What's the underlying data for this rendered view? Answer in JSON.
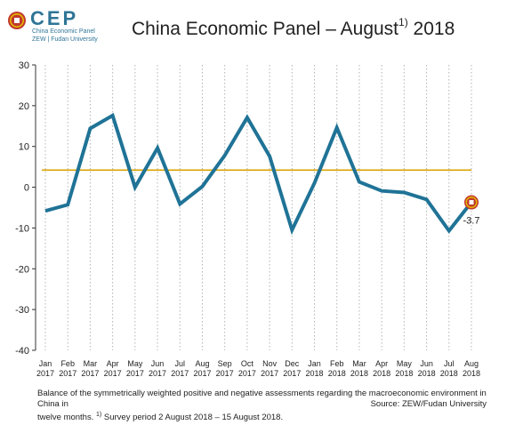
{
  "logo": {
    "text": "CEP",
    "line1": "China Economic Panel",
    "line2": "ZEW | Fudan University"
  },
  "title": {
    "main": "China Economic Panel – August",
    "superscript": "1)",
    "year": "2018"
  },
  "footer": {
    "line1": "Balance of the symmetrically weighted positive and negative assessments regarding the macroeconomic environment in China in",
    "line2_prefix": "twelve months. ",
    "footnote_mark": "1)",
    "line2_rest": " Survey period 2 August 2018 – 15 August 2018.",
    "source": "Source: ZEW/Fudan University"
  },
  "chart_data": {
    "type": "line",
    "categories": [
      [
        "Jan",
        "2017"
      ],
      [
        "Feb",
        "2017"
      ],
      [
        "Mar",
        "2017"
      ],
      [
        "Apr",
        "2017"
      ],
      [
        "May",
        "2017"
      ],
      [
        "Jun",
        "2017"
      ],
      [
        "Jul",
        "2017"
      ],
      [
        "Aug",
        "2017"
      ],
      [
        "Sep",
        "2017"
      ],
      [
        "Oct",
        "2017"
      ],
      [
        "Nov",
        "2017"
      ],
      [
        "Dec",
        "2017"
      ],
      [
        "Jan",
        "2018"
      ],
      [
        "Feb",
        "2018"
      ],
      [
        "Mar",
        "2018"
      ],
      [
        "Apr",
        "2018"
      ],
      [
        "May",
        "2018"
      ],
      [
        "Jun",
        "2018"
      ],
      [
        "Jul",
        "2018"
      ],
      [
        "Aug",
        "2018"
      ]
    ],
    "series": [
      {
        "values": [
          -5.8,
          -4.3,
          14.4,
          17.6,
          0.0,
          9.6,
          -4.1,
          0.2,
          7.8,
          17.1,
          7.6,
          -10.5,
          1.0,
          14.6,
          1.3,
          -0.9,
          -1.3,
          -3.0,
          -10.7,
          -3.7
        ],
        "color": "#1f7396"
      }
    ],
    "reference_line": {
      "value": 4.2,
      "color": "#d9a300"
    },
    "highlight": {
      "index": 19,
      "label": "-3.7",
      "marker_color": "#c0392b"
    },
    "ylim": [
      -40,
      30
    ],
    "yticks": [
      30,
      20,
      10,
      0,
      -10,
      -20,
      -30,
      -40
    ],
    "grid": "vertical dotted",
    "xlabel": "",
    "ylabel": ""
  }
}
